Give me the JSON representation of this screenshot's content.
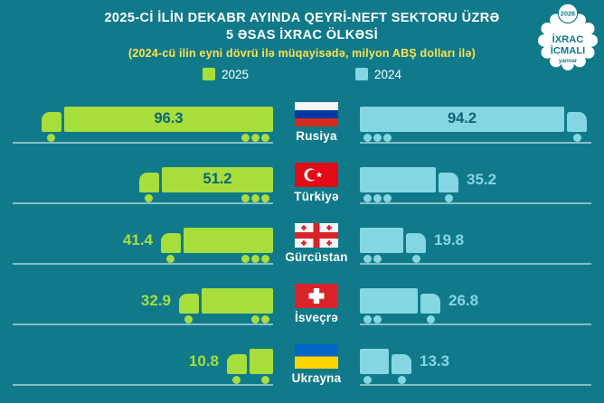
{
  "header": {
    "line1": "2025-Cİ İLİN DEKABR AYINDA QEYRİ-NEFT SEKTORU ÜZRƏ",
    "line2": "5 ƏSAS İXRAC ÖLKƏSİ",
    "subtitle": "(2024-cü ilin eyni dövrü ilə müqayisədə, milyon ABŞ dolları ilə)"
  },
  "badge": {
    "year": "2026",
    "line1": "İXRAC",
    "line2": "İCMALI",
    "sub": "yanvar"
  },
  "colors": {
    "background": "#107a8b",
    "green_2025": "#a8de3c",
    "blue_2024": "#85d6e3",
    "accent_yellow": "#ffe14d",
    "inside_label": "#0c6474"
  },
  "chart_data": {
    "type": "bar",
    "orientation": "horizontal paired (back-to-back truck pictograph)",
    "title": "2025-Cİ İLİN DEKABR AYINDA QEYRİ-NEFT SEKTORU ÜZRƏ 5 ƏSAS İXRAC ÖLKƏSİ",
    "subtitle": "(2024-cü ilin eyni dövrü ilə müqayisədə, milyon ABŞ dolları ilə)",
    "unit": "milyon ABŞ dolları",
    "legend_position": "top-center",
    "categories": [
      "Rusiya",
      "Türkiyə",
      "Gürcüstan",
      "İsveçrə",
      "Ukrayna"
    ],
    "series": [
      {
        "name": "2025",
        "color": "#a8de3c",
        "values": [
          96.3,
          51.2,
          41.4,
          32.9,
          10.8
        ]
      },
      {
        "name": "2024",
        "color": "#85d6e3",
        "values": [
          94.2,
          35.2,
          19.8,
          26.8,
          13.3
        ]
      }
    ],
    "label_positions": {
      "2025": [
        "inside",
        "inside",
        "outside",
        "outside",
        "outside"
      ],
      "2024": [
        "inside",
        "outside",
        "outside",
        "outside",
        "outside"
      ]
    }
  }
}
